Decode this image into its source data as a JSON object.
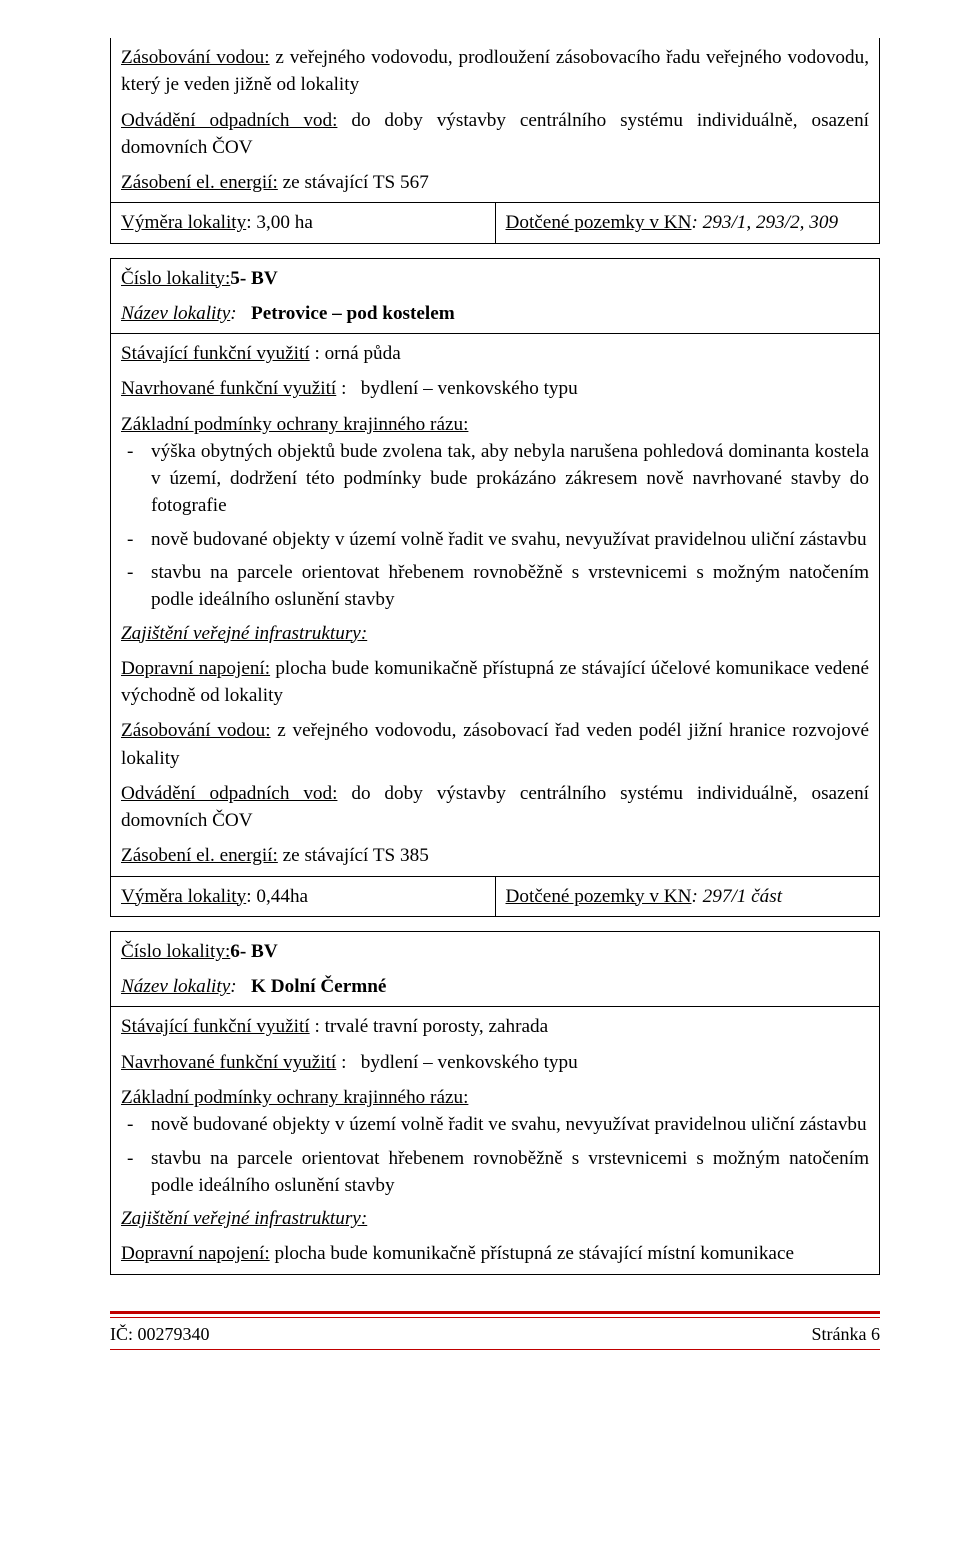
{
  "block1": {
    "supply_label": "Zásobování vodou:",
    "supply_text": "z veřejného vodovodu, prodloužení zásobovacího   řadu veřejného vodovodu, který je veden jižně od lokality",
    "drain_label": "Odvádění odpadních vod:",
    "drain_text": "do doby výstavby centrálního systému individuálně, osazení domovních ČOV",
    "energy_label": "Zásobení el. energií:",
    "energy_text": "ze stávající TS 567",
    "area_label": "Výměra lokality",
    "area_value": "3,00 ha",
    "plots_label": "Dotčené pozemky v KN",
    "plots_value": "293/1, 293/2, 309"
  },
  "block2": {
    "loc_num_label": "Číslo lokality:",
    "loc_num_value": "5- BV",
    "name_label": "Název lokality",
    "name_value": "Petrovice – pod kostelem",
    "exist_label": "Stávající funkční využití",
    "exist_value": "orná půda",
    "prop_label": "Navrhované funkční využití",
    "prop_value": "bydlení – venkovského typu",
    "cond_label": "Základní podmínky ochrany krajinného rázu:",
    "li1": "výška obytných objektů bude zvolena tak, aby nebyla narušena pohledová dominanta kostela  v území,  dodržení této podmínky bude prokázáno zákresem nově navrhované stavby do fotografie",
    "li2": "nově budované  objekty v území volně řadit ve svahu, nevyužívat pravidelnou uliční zástavbu",
    "li3": "stavbu na parcele orientovat hřebenem rovnoběžně s vrstevnicemi s možným natočením podle ideálního oslunění stavby",
    "infra_label": "Zajištění veřejné infrastruktury:",
    "traffic_label": "Dopravní napojení:",
    "traffic_text": "plocha bude komunikačně přístupná ze stávající účelové komunikace vedené východně od lokality",
    "supply_label": "Zásobování vodou:",
    "supply_text": "z veřejného vodovodu, zásobovací řad veden podél jižní hranice rozvojové lokality",
    "drain_label": "Odvádění odpadních vod:",
    "drain_text": "do doby výstavby centrálního systému individuálně, osazení domovních ČOV",
    "energy_label": "Zásobení el. energií:",
    "energy_text": "ze stávající TS 385",
    "area_label": "Výměra lokality",
    "area_value": "0,44ha",
    "plots_label": "Dotčené pozemky v KN",
    "plots_value": "297/1 část"
  },
  "block3": {
    "loc_num_label": "Číslo lokality:",
    "loc_num_value": "6- BV",
    "name_label": "Název lokality",
    "name_value": "K Dolní Čermné",
    "exist_label": "Stávající funkční využití",
    "exist_value": "trvalé travní porosty, zahrada",
    "prop_label": "Navrhované funkční využití",
    "prop_value": "bydlení – venkovského typu",
    "cond_label": "Základní podmínky ochrany krajinného rázu:",
    "li1": "nově budované objekty v území volně řadit ve svahu, nevyužívat pravidelnou uliční zástavbu",
    "li2": "stavbu na parcele orientovat hřebenem rovnoběžně s vrstevnicemi s možným natočením podle ideálního oslunění stavby",
    "infra_label": "Zajištění veřejné infrastruktury:",
    "traffic_label": "Dopravní napojení:",
    "traffic_text": "plocha bude komunikačně přístupná ze stávající místní komunikace"
  },
  "footer": {
    "left": "IČ: 00279340",
    "right": "Stránka 6"
  }
}
